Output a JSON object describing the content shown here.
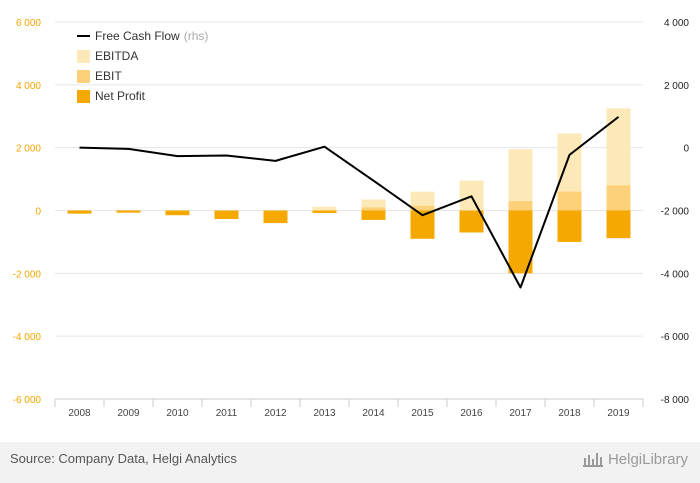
{
  "chart_data": {
    "type": "bar",
    "categories": [
      "2008",
      "2009",
      "2010",
      "2011",
      "2012",
      "2013",
      "2014",
      "2015",
      "2016",
      "2017",
      "2018",
      "2019"
    ],
    "series": [
      {
        "name": "EBITDA",
        "kind": "bar",
        "color": "#fde9b8",
        "values": [
          -80,
          -40,
          -90,
          -180,
          -300,
          120,
          350,
          600,
          950,
          1950,
          2450,
          3250
        ]
      },
      {
        "name": "EBIT",
        "kind": "bar",
        "color": "#fcd17a",
        "values": [
          -90,
          -50,
          -120,
          -220,
          -340,
          -60,
          100,
          150,
          0,
          300,
          600,
          800
        ]
      },
      {
        "name": "Net Profit",
        "kind": "bar",
        "color": "#f5a800",
        "values": [
          -100,
          -70,
          -150,
          -270,
          -400,
          -80,
          -300,
          -900,
          -700,
          -2000,
          -1000,
          -880
        ]
      },
      {
        "name": "Free Cash Flow",
        "suffix": "(rhs)",
        "kind": "line",
        "axis": "right",
        "color": "#000000",
        "values": [
          0,
          -40,
          -270,
          -250,
          -420,
          30,
          -1050,
          -2150,
          -1550,
          -4450,
          -230,
          980
        ]
      }
    ],
    "left_axis": {
      "min": -6000,
      "max": 6000,
      "ticks": [
        6000,
        4000,
        2000,
        0,
        -2000,
        -4000,
        -6000
      ],
      "tick_labels": [
        "6 000",
        "4 000",
        "2 000",
        "0",
        "-2 000",
        "-4 000",
        "-6 000"
      ]
    },
    "right_axis": {
      "min": -8000,
      "max": 4000,
      "ticks": [
        4000,
        2000,
        0,
        -2000,
        -4000,
        -6000,
        -8000
      ],
      "tick_labels": [
        "4 000",
        "2 000",
        "0",
        "-2 000",
        "-4 000",
        "-6 000",
        "-8 000"
      ]
    },
    "legend_position": "top-left"
  },
  "footer": {
    "source": "Source: Company Data, Helgi Analytics",
    "brand": "HelgiLibrary"
  }
}
